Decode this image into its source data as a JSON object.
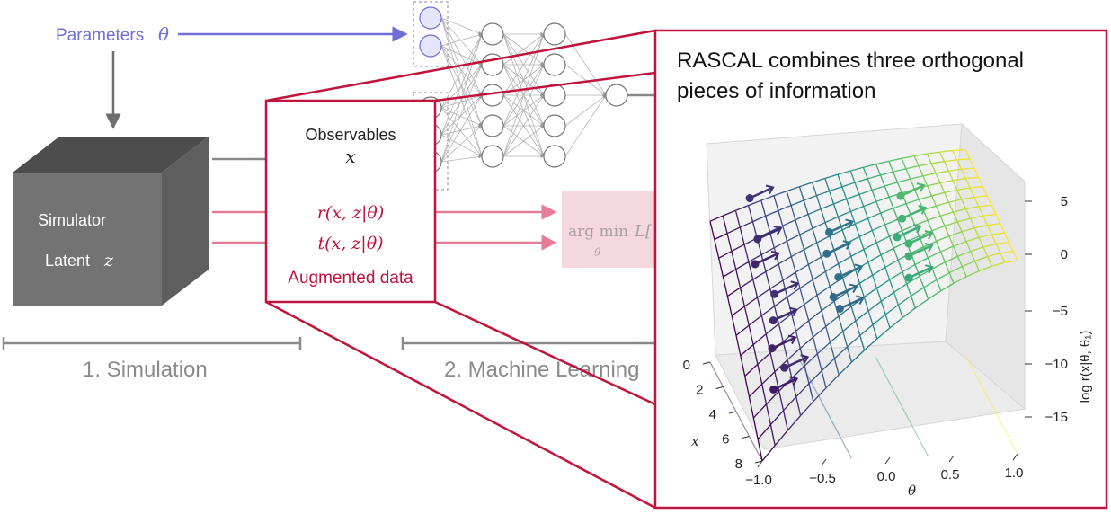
{
  "colors": {
    "blue": "#6f6fd6",
    "gray": "#8a8a8a",
    "dark_gray": "#6e6e6e",
    "crimson": "#c1133c",
    "pink": "#e37e98",
    "pink_box": "#f4d8de"
  },
  "params": {
    "label": "Parameters",
    "symbol": "θ"
  },
  "simulator": {
    "title": "Simulator",
    "latent_label": "Latent",
    "latent_symbol": "z"
  },
  "augmented": {
    "observables_label": "Observables",
    "x_symbol": "x",
    "r_expr": "r(x, z|θ)",
    "t_expr": "t(x, z|θ)",
    "caption": "Augmented data"
  },
  "loss": {
    "argmin": "arg min",
    "L": "L[",
    "g": "g"
  },
  "sections": {
    "simulation": "1. Simulation",
    "ml": "2. Machine Learning"
  },
  "inset": {
    "title_line1": "RASCAL combines three orthogonal",
    "title_line2": "pieces of information"
  },
  "chart_data": {
    "type": "surface3d",
    "xlabel": "θ",
    "ylabel": "x",
    "zlabel": "log r(x|θ, θ₁)",
    "x_ticks": [
      "−1.0",
      "−0.5",
      "0.0",
      "0.5",
      "1.0"
    ],
    "y_ticks": [
      "0",
      "2",
      "4",
      "6",
      "8"
    ],
    "z_ticks": [
      "5",
      "0",
      "−5",
      "−10",
      "−15"
    ],
    "xlim": [
      -1.0,
      1.0
    ],
    "ylim": [
      0,
      8
    ],
    "zlim": [
      -15,
      5
    ],
    "colormap": "viridis"
  }
}
